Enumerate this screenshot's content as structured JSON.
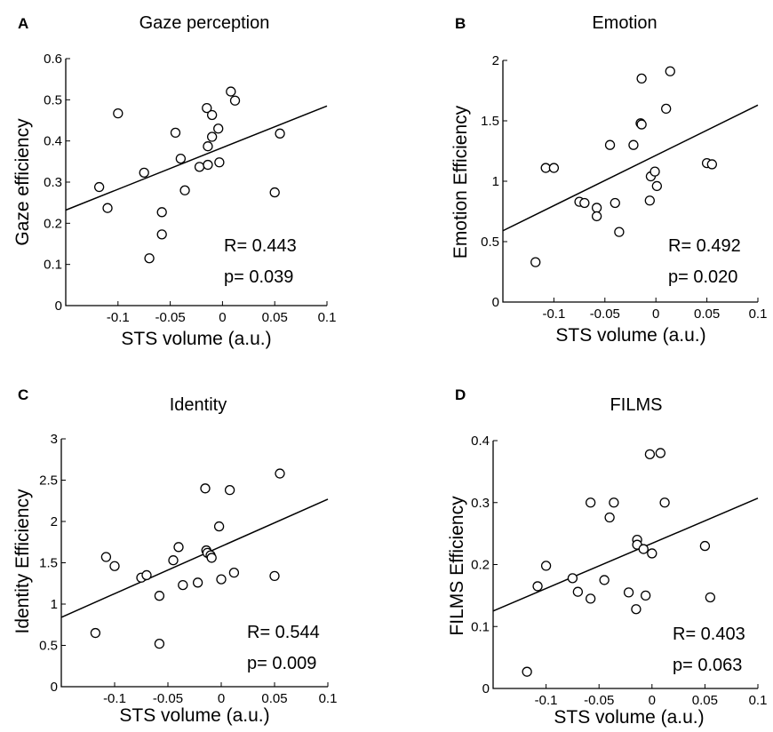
{
  "chart_data": [
    {
      "type": "scatter",
      "panel_letter": "A",
      "title": "Gaze perception",
      "xlabel": "STS volume (a.u.)",
      "ylabel": "Gaze efficiency",
      "xlim": [
        -0.15,
        0.1
      ],
      "ylim": [
        0,
        0.6
      ],
      "xticks": [
        -0.1,
        -0.05,
        0,
        0.05,
        0.1
      ],
      "xtick_labels": [
        "-0.1",
        "-0.05",
        "0",
        "0.05",
        "0.1"
      ],
      "yticks": [
        0,
        0.1,
        0.2,
        0.3,
        0.4,
        0.5,
        0.6
      ],
      "ytick_labels": [
        "0",
        "0.1",
        "0.2",
        "0.3",
        "0.4",
        "0.5",
        "0.6"
      ],
      "fit_line": [
        [
          -0.15,
          0.232
        ],
        [
          0.1,
          0.485
        ]
      ],
      "stats": [
        "R= 0.443",
        "p= 0.039"
      ],
      "points": [
        [
          -0.118,
          0.288
        ],
        [
          -0.11,
          0.237
        ],
        [
          -0.1,
          0.467
        ],
        [
          -0.075,
          0.323
        ],
        [
          -0.07,
          0.115
        ],
        [
          -0.058,
          0.227
        ],
        [
          -0.058,
          0.173
        ],
        [
          -0.045,
          0.42
        ],
        [
          -0.04,
          0.357
        ],
        [
          -0.036,
          0.28
        ],
        [
          -0.022,
          0.337
        ],
        [
          -0.015,
          0.48
        ],
        [
          -0.014,
          0.342
        ],
        [
          -0.014,
          0.387
        ],
        [
          -0.01,
          0.463
        ],
        [
          -0.01,
          0.41
        ],
        [
          -0.004,
          0.43
        ],
        [
          -0.003,
          0.348
        ],
        [
          0.008,
          0.52
        ],
        [
          0.012,
          0.498
        ],
        [
          0.05,
          0.275
        ],
        [
          0.055,
          0.418
        ]
      ]
    },
    {
      "type": "scatter",
      "panel_letter": "B",
      "title": "Emotion",
      "xlabel": "STS volume (a.u.)",
      "ylabel": "Emotion Efficiency",
      "xlim": [
        -0.15,
        0.1
      ],
      "ylim": [
        0,
        2
      ],
      "xticks": [
        -0.1,
        -0.05,
        0,
        0.05,
        0.1
      ],
      "xtick_labels": [
        "-0.1",
        "-0.05",
        "0",
        "0.05",
        "0.1"
      ],
      "yticks": [
        0,
        0.5,
        1,
        1.5,
        2
      ],
      "ytick_labels": [
        "0",
        "0.5",
        "1",
        "1.5",
        "2"
      ],
      "fit_line": [
        [
          -0.15,
          0.59
        ],
        [
          0.1,
          1.63
        ]
      ],
      "stats": [
        "R= 0.492",
        "p= 0.020"
      ],
      "points": [
        [
          -0.118,
          0.33
        ],
        [
          -0.108,
          1.11
        ],
        [
          -0.1,
          1.11
        ],
        [
          -0.075,
          0.83
        ],
        [
          -0.07,
          0.82
        ],
        [
          -0.058,
          0.78
        ],
        [
          -0.058,
          0.71
        ],
        [
          -0.045,
          1.3
        ],
        [
          -0.04,
          0.82
        ],
        [
          -0.036,
          0.58
        ],
        [
          -0.022,
          1.3
        ],
        [
          -0.015,
          1.48
        ],
        [
          -0.014,
          1.47
        ],
        [
          -0.014,
          1.85
        ],
        [
          -0.006,
          0.84
        ],
        [
          -0.005,
          1.04
        ],
        [
          -0.001,
          1.08
        ],
        [
          0.001,
          0.96
        ],
        [
          0.01,
          1.6
        ],
        [
          0.014,
          1.91
        ],
        [
          0.05,
          1.15
        ],
        [
          0.055,
          1.14
        ]
      ]
    },
    {
      "type": "scatter",
      "panel_letter": "C",
      "title": "Identity",
      "xlabel": "STS volume (a.u.)",
      "ylabel": "Identity Efficiency",
      "xlim": [
        -0.15,
        0.1
      ],
      "ylim": [
        0,
        3
      ],
      "xticks": [
        -0.1,
        -0.05,
        0,
        0.05,
        0.1
      ],
      "xtick_labels": [
        "-0.1",
        "-0.05",
        "0",
        "0.05",
        "0.1"
      ],
      "yticks": [
        0,
        0.5,
        1,
        1.5,
        2,
        2.5,
        3
      ],
      "ytick_labels": [
        "0",
        "0.5",
        "1",
        "1.5",
        "2",
        "2.5",
        "3"
      ],
      "fit_line": [
        [
          -0.15,
          0.84
        ],
        [
          0.1,
          2.27
        ]
      ],
      "stats": [
        "R= 0.544",
        "p= 0.009"
      ],
      "points": [
        [
          -0.118,
          0.65
        ],
        [
          -0.108,
          1.57
        ],
        [
          -0.1,
          1.46
        ],
        [
          -0.075,
          1.32
        ],
        [
          -0.07,
          1.35
        ],
        [
          -0.058,
          1.1
        ],
        [
          -0.058,
          0.52
        ],
        [
          -0.045,
          1.53
        ],
        [
          -0.04,
          1.69
        ],
        [
          -0.036,
          1.23
        ],
        [
          -0.022,
          1.26
        ],
        [
          -0.015,
          2.4
        ],
        [
          -0.014,
          1.65
        ],
        [
          -0.013,
          1.62
        ],
        [
          -0.01,
          1.59
        ],
        [
          -0.009,
          1.56
        ],
        [
          -0.002,
          1.94
        ],
        [
          0,
          1.3
        ],
        [
          0.008,
          2.38
        ],
        [
          0.012,
          1.38
        ],
        [
          0.05,
          1.34
        ],
        [
          0.055,
          2.58
        ]
      ]
    },
    {
      "type": "scatter",
      "panel_letter": "D",
      "title": "FILMS",
      "xlabel": "STS volume (a.u.)",
      "ylabel": "FILMS Efficiency",
      "xlim": [
        -0.15,
        0.1
      ],
      "ylim": [
        0,
        0.4
      ],
      "xticks": [
        -0.1,
        -0.05,
        0,
        0.05,
        0.1
      ],
      "xtick_labels": [
        "-0.1",
        "-0.05",
        "0",
        "0.05",
        "0.1"
      ],
      "yticks": [
        0,
        0.1,
        0.2,
        0.3,
        0.4
      ],
      "ytick_labels": [
        "0",
        "0.1",
        "0.2",
        "0.3",
        "0.4"
      ],
      "fit_line": [
        [
          -0.15,
          0.125
        ],
        [
          0.1,
          0.307
        ]
      ],
      "stats": [
        "R= 0.403",
        "p= 0.063"
      ],
      "points": [
        [
          -0.118,
          0.027
        ],
        [
          -0.108,
          0.165
        ],
        [
          -0.1,
          0.198
        ],
        [
          -0.075,
          0.178
        ],
        [
          -0.07,
          0.156
        ],
        [
          -0.058,
          0.145
        ],
        [
          -0.058,
          0.3
        ],
        [
          -0.045,
          0.175
        ],
        [
          -0.04,
          0.276
        ],
        [
          -0.036,
          0.3
        ],
        [
          -0.022,
          0.155
        ],
        [
          -0.015,
          0.128
        ],
        [
          -0.014,
          0.24
        ],
        [
          -0.014,
          0.232
        ],
        [
          -0.008,
          0.225
        ],
        [
          -0.006,
          0.15
        ],
        [
          -0.002,
          0.378
        ],
        [
          0,
          0.218
        ],
        [
          0.008,
          0.38
        ],
        [
          0.012,
          0.3
        ],
        [
          0.05,
          0.23
        ],
        [
          0.055,
          0.147
        ]
      ]
    }
  ]
}
